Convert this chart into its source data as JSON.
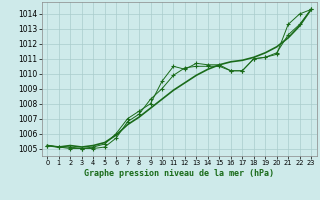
{
  "xlabel": "Graphe pression niveau de la mer (hPa)",
  "background_color": "#ceeaea",
  "grid_color": "#aacccc",
  "line_color": "#1a6b1a",
  "xlim": [
    -0.5,
    23.5
  ],
  "ylim": [
    1004.5,
    1014.8
  ],
  "yticks": [
    1005,
    1006,
    1007,
    1008,
    1009,
    1010,
    1011,
    1012,
    1013,
    1014
  ],
  "xticks": [
    0,
    1,
    2,
    3,
    4,
    5,
    6,
    7,
    8,
    9,
    10,
    11,
    12,
    13,
    14,
    15,
    16,
    17,
    18,
    19,
    20,
    21,
    22,
    23
  ],
  "line1_x": [
    0,
    1,
    2,
    3,
    4,
    5,
    6,
    7,
    8,
    9,
    10,
    11,
    12,
    13,
    14,
    15,
    16,
    17,
    18,
    19,
    20,
    21,
    22,
    23
  ],
  "line1_y": [
    1005.2,
    1005.1,
    1005.1,
    1005.0,
    1005.1,
    1005.3,
    1006.0,
    1007.0,
    1007.5,
    1008.0,
    1009.5,
    1010.5,
    1010.3,
    1010.7,
    1010.6,
    1010.6,
    1010.2,
    1010.2,
    1011.0,
    1011.1,
    1011.3,
    1013.3,
    1014.0,
    1014.3
  ],
  "line2_x": [
    0,
    1,
    2,
    3,
    4,
    5,
    6,
    7,
    8,
    9,
    10,
    11,
    12,
    13,
    14,
    15,
    16,
    17,
    18,
    19,
    20,
    21,
    22,
    23
  ],
  "line2_y": [
    1005.2,
    1005.1,
    1005.0,
    1005.0,
    1005.0,
    1005.1,
    1005.7,
    1006.8,
    1007.3,
    1008.3,
    1009.0,
    1009.9,
    1010.4,
    1010.5,
    1010.5,
    1010.5,
    1010.2,
    1010.2,
    1011.0,
    1011.1,
    1011.4,
    1012.6,
    1013.3,
    1014.3
  ],
  "line3_x": [
    0,
    1,
    2,
    3,
    4,
    5,
    6,
    7,
    8,
    9,
    10,
    11,
    12,
    13,
    14,
    15,
    16,
    17,
    18,
    19,
    20,
    21,
    22,
    23
  ],
  "line3_y": [
    1005.2,
    1005.1,
    1005.2,
    1005.1,
    1005.2,
    1005.4,
    1005.9,
    1006.6,
    1007.1,
    1007.7,
    1008.3,
    1008.9,
    1009.4,
    1009.9,
    1010.3,
    1010.6,
    1010.8,
    1010.9,
    1011.1,
    1011.4,
    1011.8,
    1012.4,
    1013.2,
    1014.3
  ]
}
